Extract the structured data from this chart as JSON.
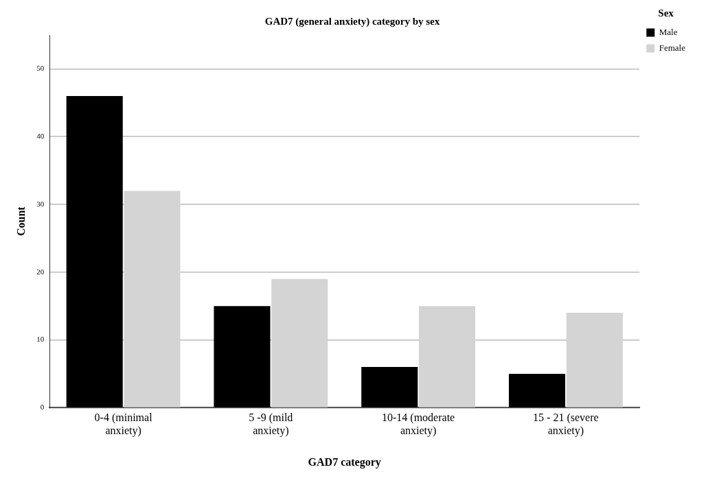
{
  "chart_data": {
    "type": "bar",
    "title": "GAD7 (general anxiety) category by sex",
    "xlabel": "GAD7 category",
    "ylabel": "Count",
    "legend_title": "Sex",
    "legend": "top right",
    "grid": "y",
    "categories": [
      "0-4 (minimal anxiety)",
      "5 -9 (mild anxiety)",
      "10-14 (moderate anxiety)",
      "15 - 21 (severe anxiety)"
    ],
    "series": [
      {
        "name": "Male",
        "color": "#000000",
        "values": [
          46,
          15,
          6,
          5
        ]
      },
      {
        "name": "Female",
        "color": "#d4d4d4",
        "values": [
          32,
          19,
          15,
          14
        ]
      }
    ],
    "ylim": [
      0,
      55
    ],
    "yticks": [
      0,
      10,
      20,
      30,
      40,
      50
    ]
  }
}
